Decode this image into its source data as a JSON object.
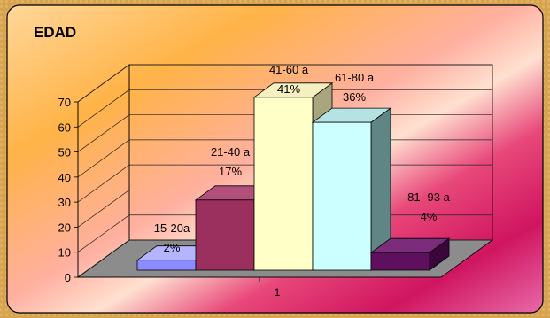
{
  "chart_data": {
    "type": "bar",
    "title": "EDAD",
    "categories": [
      "1"
    ],
    "series": [
      {
        "name": "15-20a",
        "values": [
          4
        ],
        "label_lines": [
          "15-20a",
          "2%"
        ],
        "color": "#8c8cff",
        "side": "#5a5ab8",
        "top": "#b4b4ff"
      },
      {
        "name": "21-40 a",
        "values": [
          28
        ],
        "label_lines": [
          "21-40 a",
          "17%"
        ],
        "color": "#9b2f5e",
        "side": "#6b1f40",
        "top": "#b2507b"
      },
      {
        "name": "41-60 a",
        "values": [
          69
        ],
        "label_lines": [
          "41-60 a",
          "41%"
        ],
        "color": "#ffffc8",
        "side": "#a9a57e",
        "top": "#f4f0c0"
      },
      {
        "name": "61-80 a",
        "values": [
          59
        ],
        "label_lines": [
          "61-80 a",
          "36%"
        ],
        "color": "#ccffff",
        "side": "#5f8585",
        "top": "#b5e3e3"
      },
      {
        "name": "81- 93 a",
        "values": [
          7
        ],
        "label_lines": [
          "81- 93 a",
          "4%"
        ],
        "color": "#5e105e",
        "side": "#3b073b",
        "top": "#7b2c7b"
      }
    ],
    "y_ticks": [
      "0",
      "10",
      "20",
      "30",
      "40",
      "50",
      "60",
      "70"
    ],
    "ylim": [
      0,
      70
    ],
    "grid": true,
    "legend": "none"
  }
}
